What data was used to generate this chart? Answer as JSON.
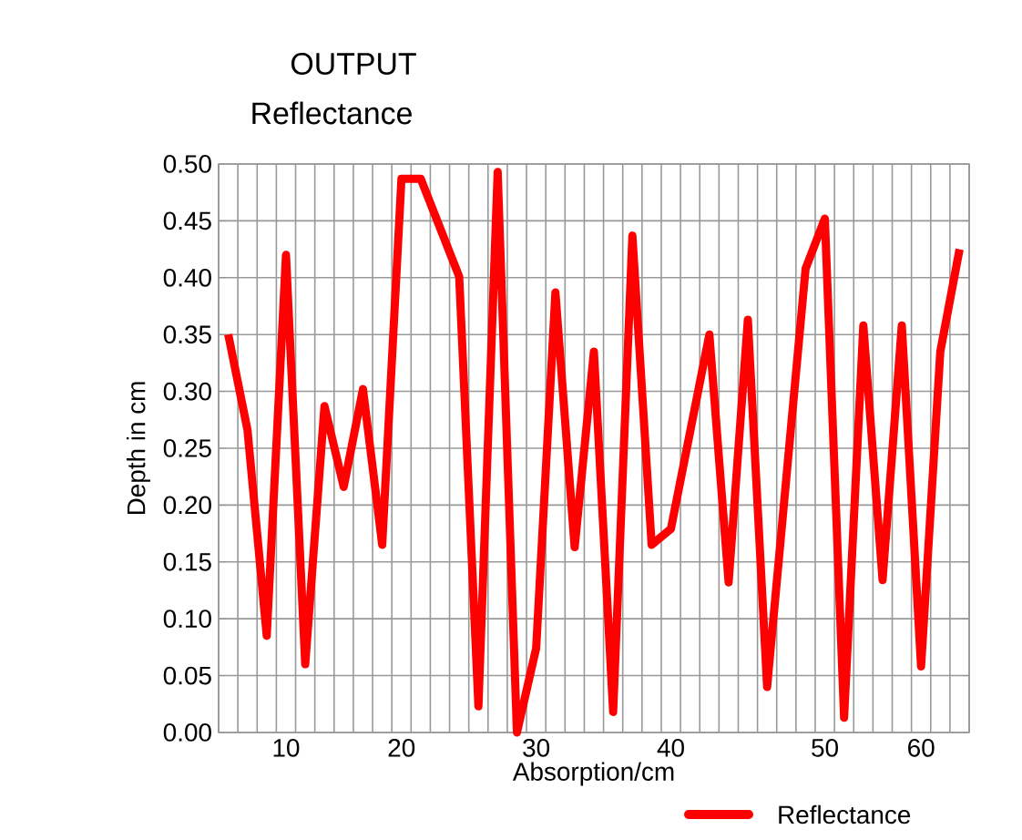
{
  "chart_data": {
    "type": "line",
    "title": "OUTPUT",
    "subtitle": "Reflectance",
    "xlabel": "Absorption/cm",
    "ylabel": "Depth in cm",
    "categories": [
      null,
      null,
      null,
      "10",
      null,
      null,
      null,
      null,
      null,
      "20",
      null,
      null,
      null,
      null,
      null,
      null,
      "30",
      null,
      null,
      null,
      null,
      null,
      null,
      "40",
      null,
      null,
      null,
      null,
      null,
      null,
      null,
      "50",
      null,
      null,
      null,
      null,
      "60",
      null,
      null
    ],
    "ylim": [
      0,
      0.5
    ],
    "yticks": [
      {
        "value": 0,
        "label": "0.00"
      },
      {
        "value": 0.05,
        "label": "0.05"
      },
      {
        "value": 0.1,
        "label": "0.10"
      },
      {
        "value": 0.15,
        "label": "0.15"
      },
      {
        "value": 0.2,
        "label": "0.20"
      },
      {
        "value": 0.25,
        "label": "0.25"
      },
      {
        "value": 0.3,
        "label": "0.30"
      },
      {
        "value": 0.35,
        "label": "0.35"
      },
      {
        "value": 0.4,
        "label": "0.40"
      },
      {
        "value": 0.45,
        "label": "0.45"
      },
      {
        "value": 0.5,
        "label": "0.50"
      }
    ],
    "grid": true,
    "legend": "bottom right",
    "marker": "none",
    "line_style": "solid",
    "series": [
      {
        "name": "Reflectance",
        "color": "#ff0000",
        "values": [
          0.35,
          0.266,
          0.085,
          0.42,
          0.06,
          0.287,
          0.216,
          0.302,
          0.165,
          0.487,
          0.487,
          null,
          0.401,
          0.023,
          0.493,
          0.0,
          0.074,
          0.387,
          0.163,
          0.335,
          0.018,
          0.437,
          0.165,
          0.179,
          null,
          0.35,
          0.132,
          0.363,
          0.04,
          null,
          0.408,
          0.452,
          0.013,
          0.358,
          0.134,
          0.358,
          0.058,
          0.335,
          0.425
        ]
      }
    ]
  }
}
